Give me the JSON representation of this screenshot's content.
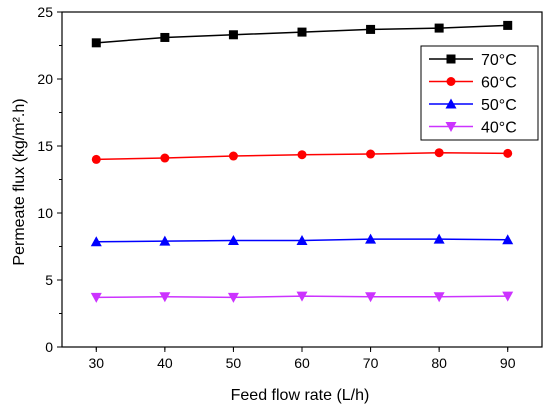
{
  "chart_data": {
    "type": "line",
    "title": "",
    "xlabel": "Feed flow rate (L/h)",
    "ylabel": "Permeate flux (kg/m².h)",
    "xlim": [
      25,
      95
    ],
    "ylim": [
      0,
      25
    ],
    "x_ticks": [
      30,
      40,
      50,
      60,
      70,
      80,
      90
    ],
    "y_ticks": [
      0,
      5,
      10,
      15,
      20,
      25
    ],
    "x": [
      30,
      40,
      50,
      60,
      70,
      80,
      90
    ],
    "grid": false,
    "legend_position": "top-right",
    "series": [
      {
        "name": "70°C",
        "color": "#000000",
        "marker": "square",
        "values": [
          22.7,
          23.1,
          23.3,
          23.5,
          23.7,
          23.8,
          24.0
        ]
      },
      {
        "name": "60°C",
        "color": "#ff0000",
        "marker": "circle",
        "values": [
          14.0,
          14.1,
          14.25,
          14.35,
          14.4,
          14.5,
          14.45
        ]
      },
      {
        "name": "50°C",
        "color": "#0000ff",
        "marker": "triangle-up",
        "values": [
          7.85,
          7.9,
          7.95,
          7.95,
          8.05,
          8.05,
          8.0
        ]
      },
      {
        "name": "40°C",
        "color": "#cc33ff",
        "marker": "triangle-down",
        "values": [
          3.7,
          3.75,
          3.7,
          3.8,
          3.75,
          3.75,
          3.8
        ]
      }
    ]
  }
}
